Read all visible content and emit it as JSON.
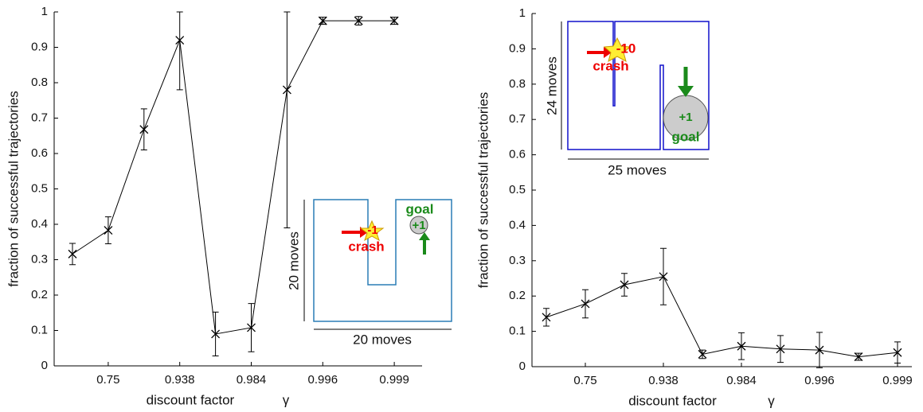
{
  "chart_data": [
    {
      "type": "line",
      "color": "#000000",
      "x_label": "discount factor",
      "x_symbol": "γ",
      "y_label": "fraction of successful trajectories",
      "categories": [
        null,
        "0.75",
        null,
        "0.938",
        null,
        "0.984",
        null,
        "0.996",
        null,
        "0.999"
      ],
      "values": [
        0.316,
        0.383,
        0.668,
        0.92,
        0.09,
        0.108,
        0.78,
        0.975,
        0.975,
        0.975
      ],
      "errors": [
        0.03,
        0.038,
        0.058,
        0.14,
        0.062,
        0.068,
        0.39,
        0.01,
        0.012,
        0.01
      ],
      "ylim": [
        0,
        1
      ],
      "yticks": [
        0,
        0.1,
        0.2,
        0.3,
        0.4,
        0.5,
        0.6,
        0.7,
        0.8,
        0.9,
        1
      ],
      "inset": {
        "goal_text": "goal",
        "goal_reward": "+1",
        "crash_reward": "-1",
        "crash_text": "crash",
        "height_text": "20 moves",
        "width_text": "20 moves"
      }
    },
    {
      "type": "line",
      "color": "#000000",
      "x_label": "discount factor",
      "x_symbol": "γ",
      "y_label": "fraction of successful trajectories",
      "categories": [
        null,
        "0.75",
        null,
        "0.938",
        null,
        "0.984",
        null,
        "0.996",
        null,
        "0.999"
      ],
      "values": [
        0.14,
        0.178,
        0.232,
        0.255,
        0.035,
        0.058,
        0.05,
        0.047,
        0.028,
        0.04
      ],
      "errors": [
        0.025,
        0.04,
        0.032,
        0.08,
        0.012,
        0.038,
        0.038,
        0.05,
        0.01,
        0.03
      ],
      "ylim": [
        0,
        1
      ],
      "yticks": [
        0,
        0.1,
        0.2,
        0.3,
        0.4,
        0.5,
        0.6,
        0.7,
        0.8,
        0.9,
        1
      ],
      "inset": {
        "crash_reward": "-10",
        "crash_text": "crash",
        "goal_reward": "+1",
        "goal_text": "goal",
        "height_text": "24 moves",
        "width_text": "25 moves"
      }
    }
  ]
}
